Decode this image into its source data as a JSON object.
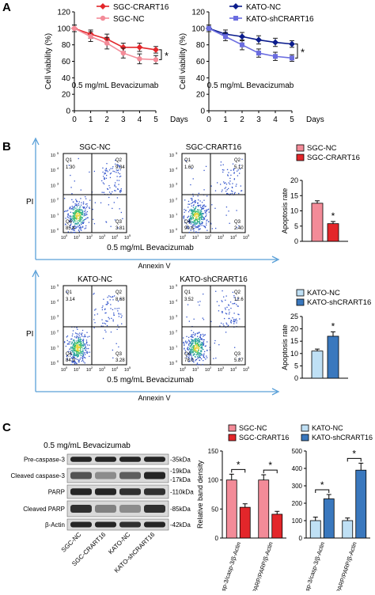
{
  "colors": {
    "sgc_crart16": "#e3262a",
    "sgc_nc": "#f38b98",
    "kato_nc": "#0b1c8c",
    "kato_sh": "#6b6de0",
    "kato_nc_bar": "#bfe0f5",
    "kato_sh_bar": "#3a78be",
    "flow_axis": "#5aa0d8"
  },
  "panels": {
    "a": "A",
    "b": "B",
    "c": "C"
  },
  "panel_a": {
    "treatment": "0.5 mg/mL Bevacizumab",
    "sig": "*",
    "x_unit": "Days",
    "ylabel": "Cell viability (%)"
  },
  "panel_b": {
    "axis_x": "Annexin V",
    "axis_y": "PI",
    "treatment": "0.5 mg/mL Bevacizumab",
    "quad_labels": [
      "Q1",
      "Q2",
      "Q3",
      "Q4"
    ],
    "plots": [
      {
        "title": "SGC-NC",
        "q1": "1.30",
        "q2": "9.34",
        "q3": "3.81",
        "q4": "85.4"
      },
      {
        "title": "SGC-CRART16",
        "q1": "1.60",
        "q2": "5.12",
        "q3": "2.40",
        "q4": "90.8"
      },
      {
        "title": "KATO-NC",
        "q1": "3.14",
        "q2": "8.68",
        "q3": "3.28",
        "q4": "84.9"
      },
      {
        "title": "KATO-shCRART16",
        "q1": "3.52",
        "q2": "12.6",
        "q3": "5.87",
        "q4": "78.0"
      }
    ],
    "sig": "*"
  },
  "panel_c": {
    "treatment": "0.5 mg/mL Bevacizumab",
    "blots": [
      {
        "name": "Pre-caspase-3",
        "size": "-35kDa"
      },
      {
        "name": "Cleaved caspase-3",
        "size": "-19kDa",
        "size2": "-17kDa"
      },
      {
        "name": "PARP",
        "size": "-110kDa"
      },
      {
        "name": "Cleaved PARP",
        "size": "-85kDa"
      },
      {
        "name": "β-Actin",
        "size": "-42kDa"
      }
    ],
    "lanes": [
      "SGC-NC",
      "SGC-CRART16",
      "KATO-NC",
      "KATO-shCRART16"
    ],
    "ylabel": "Relative band density",
    "sig": "*"
  },
  "chart_data": [
    {
      "type": "line",
      "title": "",
      "xlabel": "Days",
      "ylabel": "Cell viability (%)",
      "xlim": [
        0,
        5
      ],
      "ylim": [
        0,
        120
      ],
      "x_ticks": [
        0,
        1,
        2,
        3,
        4,
        5
      ],
      "y_ticks": [
        0,
        20,
        40,
        60,
        80,
        100,
        120
      ],
      "x": [
        0,
        1,
        2,
        3,
        4,
        5
      ],
      "legend": "top-right",
      "series": [
        {
          "name": "SGC-CRART16",
          "values": [
            100,
            93,
            87,
            77,
            77,
            74
          ],
          "err": [
            4,
            5,
            6,
            5,
            5,
            4
          ]
        },
        {
          "name": "SGC-NC",
          "values": [
            100,
            90,
            82,
            70,
            63,
            62
          ],
          "err": [
            4,
            6,
            7,
            6,
            6,
            5
          ]
        }
      ]
    },
    {
      "type": "line",
      "title": "",
      "xlabel": "Days",
      "ylabel": "Cell viability (%)",
      "xlim": [
        0,
        5
      ],
      "ylim": [
        0,
        120
      ],
      "x_ticks": [
        0,
        1,
        2,
        3,
        4,
        5
      ],
      "y_ticks": [
        0,
        20,
        40,
        60,
        80,
        100,
        120
      ],
      "x": [
        0,
        1,
        2,
        3,
        4,
        5
      ],
      "legend": "top-right",
      "series": [
        {
          "name": "KATO-NC",
          "values": [
            100,
            93,
            90,
            86,
            83,
            81
          ],
          "err": [
            4,
            5,
            5,
            5,
            5,
            4
          ]
        },
        {
          "name": "KATO-shCRART16",
          "values": [
            100,
            90,
            80,
            70,
            66,
            64
          ],
          "err": [
            4,
            5,
            6,
            5,
            5,
            4
          ]
        }
      ]
    },
    {
      "type": "bar",
      "ylabel": "Apoptosis rate",
      "ylim": [
        0,
        20
      ],
      "y_ticks": [
        0,
        5,
        10,
        15,
        20
      ],
      "legend": "top",
      "series": [
        {
          "name": "SGC-NC",
          "values": [
            12.5
          ],
          "err": [
            0.8
          ]
        },
        {
          "name": "SGC-CRART16",
          "values": [
            5.8
          ],
          "err": [
            0.7
          ]
        }
      ]
    },
    {
      "type": "bar",
      "ylabel": "Apoptosis rate",
      "ylim": [
        0,
        25
      ],
      "y_ticks": [
        0,
        5,
        10,
        15,
        20,
        25
      ],
      "legend": "top",
      "series": [
        {
          "name": "KATO-NC",
          "values": [
            11
          ],
          "err": [
            0.8
          ]
        },
        {
          "name": "KATO-shCRART16",
          "values": [
            17
          ],
          "err": [
            1.8
          ]
        }
      ]
    },
    {
      "type": "bar",
      "ylabel": "Relative band density",
      "ylim": [
        0,
        150
      ],
      "y_ticks": [
        0,
        50,
        100,
        150
      ],
      "categories": [
        "Cleaved-casp-3/casp-3/β-Actin",
        "Cleaved-PARP/PARP/β-Actin"
      ],
      "legend": "top",
      "series": [
        {
          "name": "SGC-NC",
          "values": [
            100,
            100
          ],
          "err": [
            10,
            9
          ]
        },
        {
          "name": "SGC-CRART16",
          "values": [
            53,
            41
          ],
          "err": [
            6,
            5
          ]
        }
      ]
    },
    {
      "type": "bar",
      "ylabel": "",
      "ylim": [
        0,
        500
      ],
      "y_ticks": [
        0,
        100,
        200,
        300,
        400,
        500
      ],
      "categories": [
        "Cleaved-casp-3/casp-3/β-Actin",
        "Cleaved-PARP/PARP/β-Actin"
      ],
      "legend": "top",
      "series": [
        {
          "name": "KATO-NC",
          "values": [
            100,
            100
          ],
          "err": [
            20,
            15
          ]
        },
        {
          "name": "KATO-shCRART16",
          "values": [
            225,
            390
          ],
          "err": [
            25,
            40
          ]
        }
      ]
    }
  ]
}
